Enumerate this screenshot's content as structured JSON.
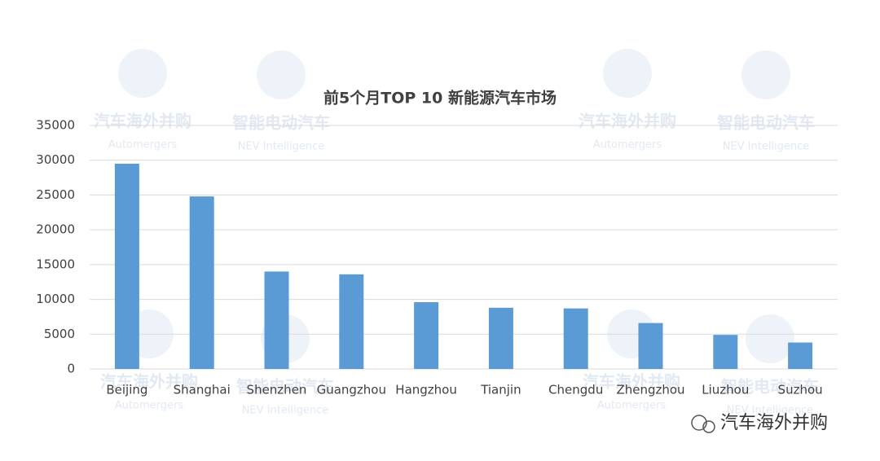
{
  "chart_data": {
    "type": "bar",
    "title": "前5个月TOP 10 新能源汽车市场",
    "categories": [
      "Beijing",
      "Shanghai",
      "Shenzhen",
      "Guangzhou",
      "Hangzhou",
      "Tianjin",
      "Chengdu",
      "Zhengzhou",
      "Liuzhou",
      "Suzhou"
    ],
    "values": [
      29500,
      24800,
      14000,
      13600,
      9600,
      8800,
      8700,
      6600,
      4900,
      3800
    ],
    "color": "#5b9bd5",
    "ylim": [
      0,
      35000
    ],
    "yticks": [
      0,
      5000,
      10000,
      15000,
      20000,
      25000,
      30000,
      35000
    ],
    "grid": true
  },
  "watermarks": [
    "汽车海外并购",
    "Automergers",
    "智能电动汽车",
    "NEV Intelligence"
  ],
  "source_label": "汽车海外并购"
}
